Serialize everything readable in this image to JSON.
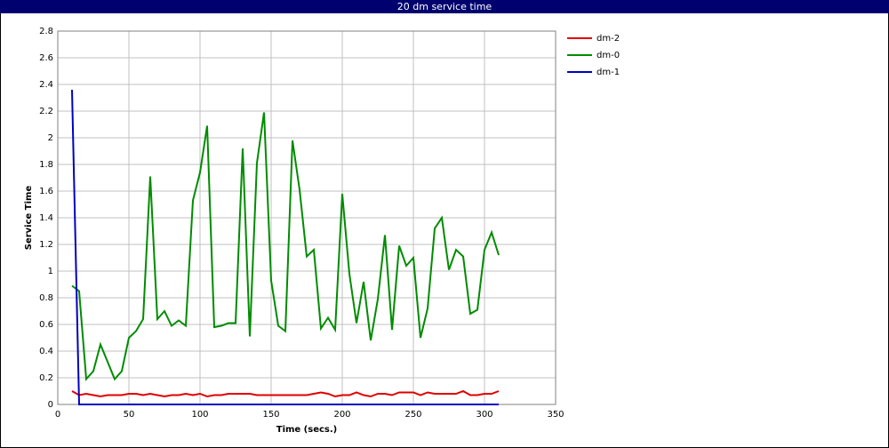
{
  "chart_data": {
    "type": "line",
    "title": "20 dm service time",
    "x_label": "Time (secs.)",
    "y_label": "Service Time",
    "x": [
      10,
      15,
      20,
      25,
      30,
      35,
      40,
      45,
      50,
      55,
      60,
      65,
      70,
      75,
      80,
      85,
      90,
      95,
      100,
      105,
      110,
      115,
      120,
      125,
      130,
      135,
      140,
      145,
      150,
      155,
      160,
      165,
      170,
      175,
      180,
      185,
      190,
      195,
      200,
      205,
      210,
      215,
      220,
      225,
      230,
      235,
      240,
      245,
      250,
      255,
      260,
      265,
      270,
      275,
      280,
      285,
      290,
      295,
      300,
      305,
      310
    ],
    "series": [
      {
        "name": "dm-2",
        "color": "#e00000",
        "values": [
          0.1,
          0.07,
          0.08,
          0.07,
          0.06,
          0.07,
          0.07,
          0.07,
          0.08,
          0.08,
          0.07,
          0.08,
          0.07,
          0.06,
          0.07,
          0.07,
          0.08,
          0.07,
          0.08,
          0.06,
          0.07,
          0.07,
          0.08,
          0.08,
          0.08,
          0.08,
          0.07,
          0.07,
          0.07,
          0.07,
          0.07,
          0.07,
          0.07,
          0.07,
          0.08,
          0.09,
          0.08,
          0.06,
          0.07,
          0.07,
          0.09,
          0.07,
          0.06,
          0.08,
          0.08,
          0.07,
          0.09,
          0.09,
          0.09,
          0.07,
          0.09,
          0.08,
          0.08,
          0.08,
          0.08,
          0.1,
          0.07,
          0.07,
          0.08,
          0.08,
          0.1
        ]
      },
      {
        "name": "dm-0",
        "color": "#008c00",
        "values": [
          0.89,
          0.85,
          0.19,
          0.25,
          0.45,
          0.32,
          0.19,
          0.25,
          0.5,
          0.55,
          0.64,
          1.71,
          0.64,
          0.7,
          0.59,
          0.63,
          0.59,
          1.53,
          1.74,
          2.09,
          0.58,
          0.59,
          0.61,
          0.61,
          1.92,
          0.51,
          1.81,
          2.19,
          0.93,
          0.59,
          0.55,
          1.98,
          1.61,
          1.11,
          1.16,
          0.57,
          0.65,
          0.56,
          1.58,
          0.98,
          0.61,
          0.92,
          0.48,
          0.79,
          1.27,
          0.56,
          1.19,
          1.04,
          1.1,
          0.5,
          0.72,
          1.32,
          1.4,
          1.01,
          1.16,
          1.11,
          0.68,
          0.71,
          1.16,
          1.29,
          1.12
        ]
      },
      {
        "name": "dm-1",
        "color": "#0000c0",
        "values": [
          2.36,
          0,
          0,
          0,
          0,
          0,
          0,
          0,
          0,
          0,
          0,
          0,
          0,
          0,
          0,
          0,
          0,
          0,
          0,
          0,
          0,
          0,
          0,
          0,
          0,
          0,
          0,
          0,
          0,
          0,
          0,
          0,
          0,
          0,
          0,
          0,
          0,
          0,
          0,
          0,
          0,
          0,
          0,
          0,
          0,
          0,
          0,
          0,
          0,
          0,
          0,
          0,
          0,
          0,
          0,
          0,
          0,
          0,
          0,
          0,
          0
        ]
      }
    ],
    "xlim": [
      0,
      350
    ],
    "xticks": [
      0,
      50,
      100,
      150,
      200,
      250,
      300,
      350
    ],
    "ylim": [
      0,
      2.8
    ],
    "yticks": [
      0,
      0.2,
      0.4,
      0.6,
      0.8,
      1,
      1.2,
      1.4,
      1.6,
      1.8,
      2,
      2.2,
      2.4,
      2.6,
      2.8
    ],
    "grid": true,
    "legend": "right"
  }
}
